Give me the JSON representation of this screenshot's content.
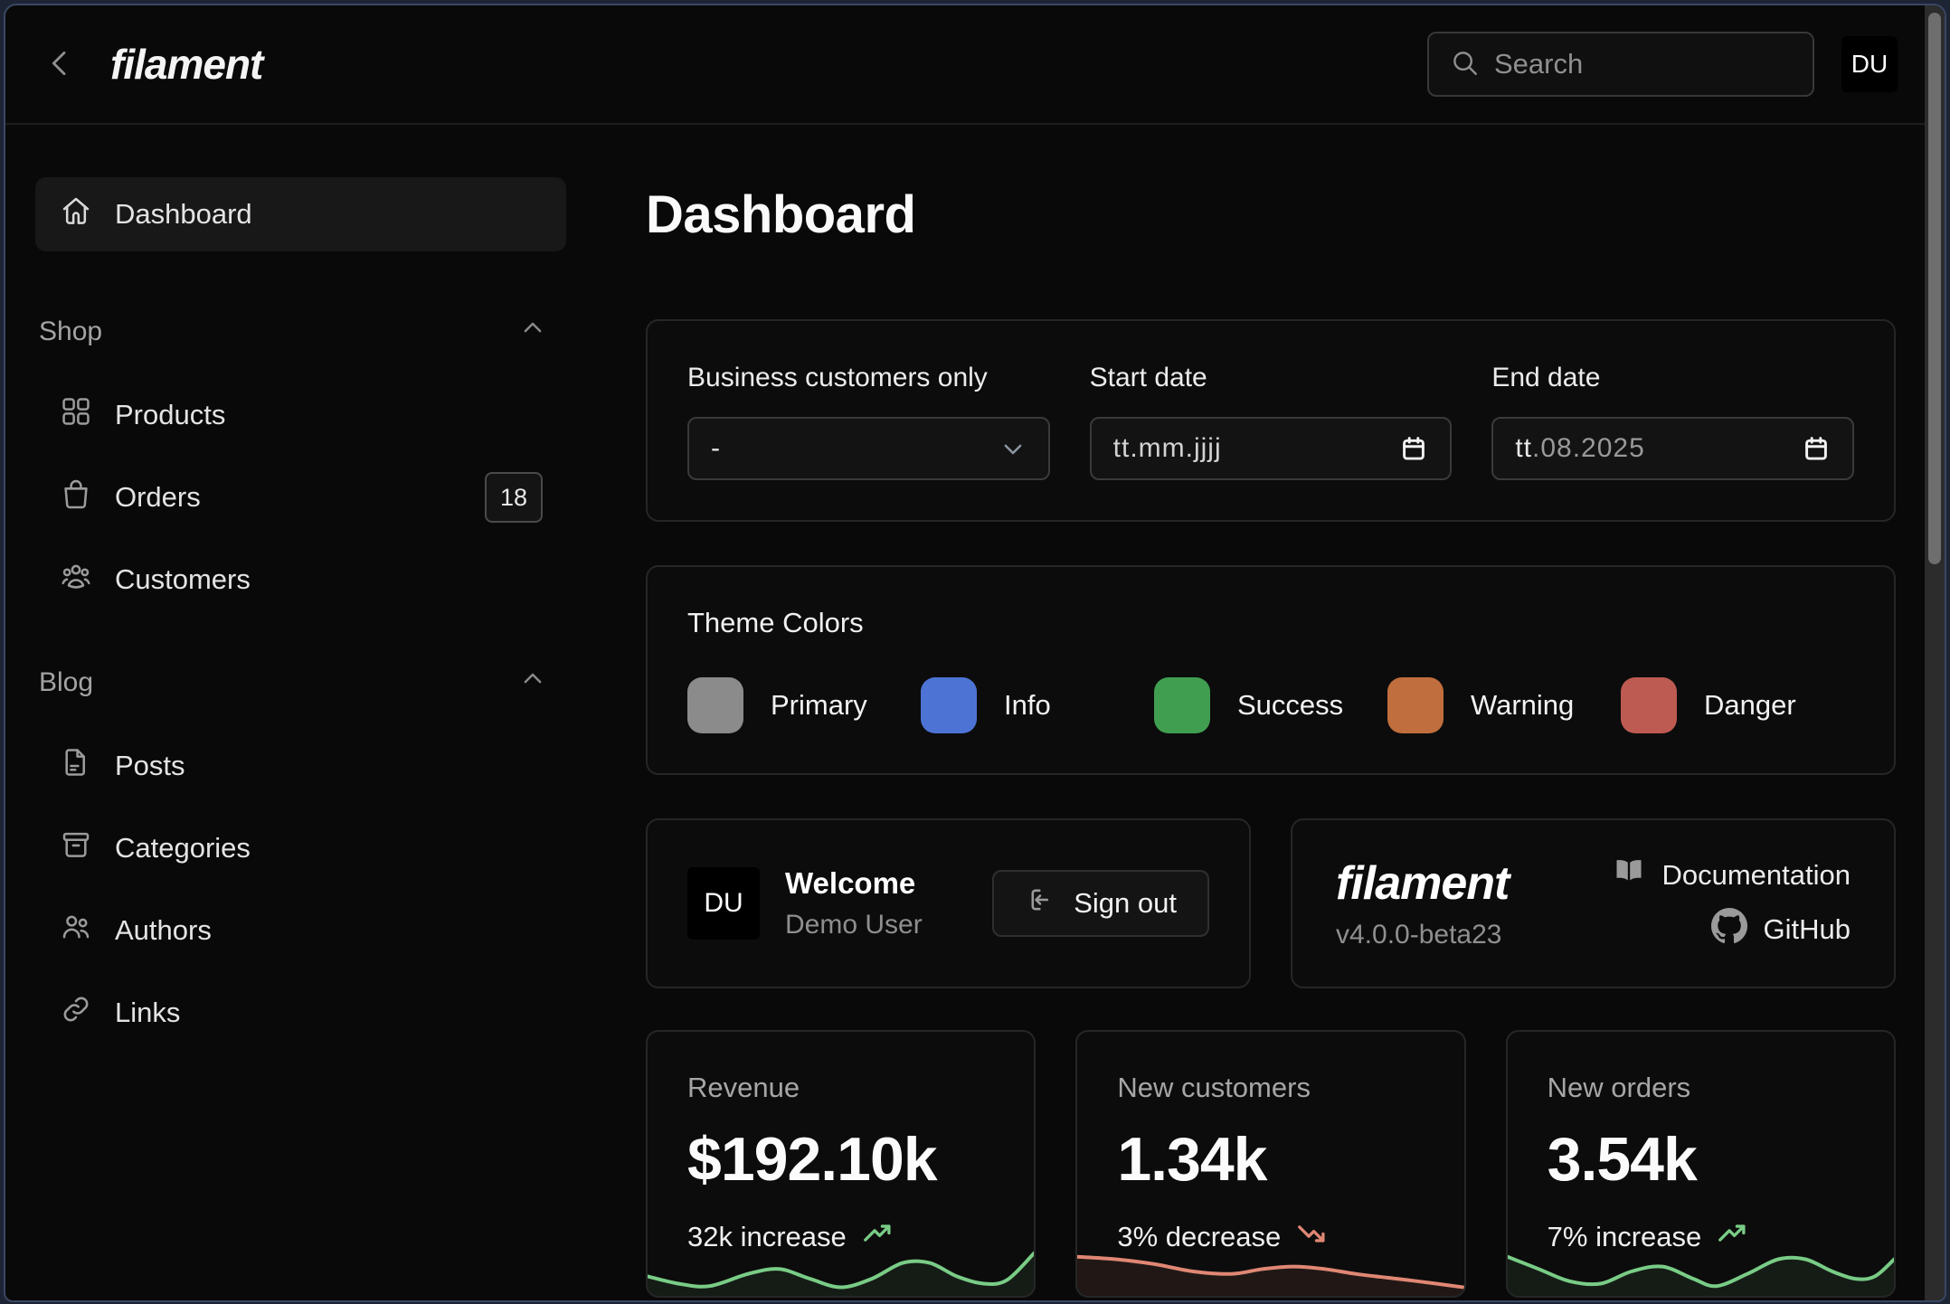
{
  "topbar": {
    "logo": "filament",
    "search_placeholder": "Search",
    "avatar": "DU"
  },
  "sidebar": {
    "dashboard": "Dashboard",
    "groups": [
      {
        "label": "Shop",
        "items": [
          {
            "label": "Products"
          },
          {
            "label": "Orders",
            "badge": "18"
          },
          {
            "label": "Customers"
          }
        ]
      },
      {
        "label": "Blog",
        "items": [
          {
            "label": "Posts"
          },
          {
            "label": "Categories"
          },
          {
            "label": "Authors"
          },
          {
            "label": "Links"
          }
        ]
      }
    ]
  },
  "main": {
    "title": "Dashboard",
    "filters": {
      "business": {
        "label": "Business customers only",
        "value": "-"
      },
      "start": {
        "label": "Start date",
        "placeholder": "tt.mm.jjjj"
      },
      "end": {
        "label": "End date",
        "filled": "tt",
        "rest": ".08.2025"
      }
    },
    "theme": {
      "title": "Theme Colors",
      "colors": [
        {
          "label": "Primary",
          "hex": "#8b8b8b"
        },
        {
          "label": "Info",
          "hex": "#4d74d4"
        },
        {
          "label": "Success",
          "hex": "#409e51"
        },
        {
          "label": "Warning",
          "hex": "#c06e3d"
        },
        {
          "label": "Danger",
          "hex": "#bd5a52"
        }
      ]
    },
    "account": {
      "avatar": "DU",
      "greeting": "Welcome",
      "name": "Demo User",
      "signout": "Sign out"
    },
    "about": {
      "logo": "filament",
      "version": "v4.0.0-beta23",
      "doc_label": "Documentation",
      "github_label": "GitHub"
    },
    "stats": [
      {
        "label": "Revenue",
        "value": "$192.10k",
        "delta": "32k increase",
        "trend": "up",
        "color": "#79cc86",
        "fill": "rgba(121,204,134,0.09)",
        "points": [
          [
            0,
            24
          ],
          [
            8,
            30
          ],
          [
            16,
            32
          ],
          [
            26,
            22
          ],
          [
            34,
            18
          ],
          [
            42,
            26
          ],
          [
            50,
            33
          ],
          [
            58,
            26
          ],
          [
            66,
            13
          ],
          [
            73,
            13
          ],
          [
            80,
            24
          ],
          [
            87,
            30
          ],
          [
            93,
            27
          ],
          [
            100,
            5
          ]
        ]
      },
      {
        "label": "New customers",
        "value": "1.34k",
        "delta": "3% decrease",
        "trend": "down",
        "color": "#e08774",
        "fill": "rgba(224,135,116,0.10)",
        "points": [
          [
            0,
            8
          ],
          [
            10,
            10
          ],
          [
            20,
            14
          ],
          [
            30,
            20
          ],
          [
            40,
            22
          ],
          [
            48,
            18
          ],
          [
            56,
            16
          ],
          [
            64,
            18
          ],
          [
            72,
            22
          ],
          [
            80,
            25
          ],
          [
            88,
            28
          ],
          [
            100,
            33
          ]
        ]
      },
      {
        "label": "New orders",
        "value": "3.54k",
        "delta": "7% increase",
        "trend": "up",
        "color": "#79cc86",
        "fill": "rgba(121,204,134,0.09)",
        "points": [
          [
            0,
            8
          ],
          [
            8,
            18
          ],
          [
            16,
            28
          ],
          [
            24,
            30
          ],
          [
            32,
            20
          ],
          [
            40,
            16
          ],
          [
            48,
            26
          ],
          [
            54,
            32
          ],
          [
            62,
            22
          ],
          [
            70,
            10
          ],
          [
            77,
            10
          ],
          [
            84,
            20
          ],
          [
            90,
            26
          ],
          [
            95,
            24
          ],
          [
            100,
            10
          ]
        ]
      }
    ]
  }
}
